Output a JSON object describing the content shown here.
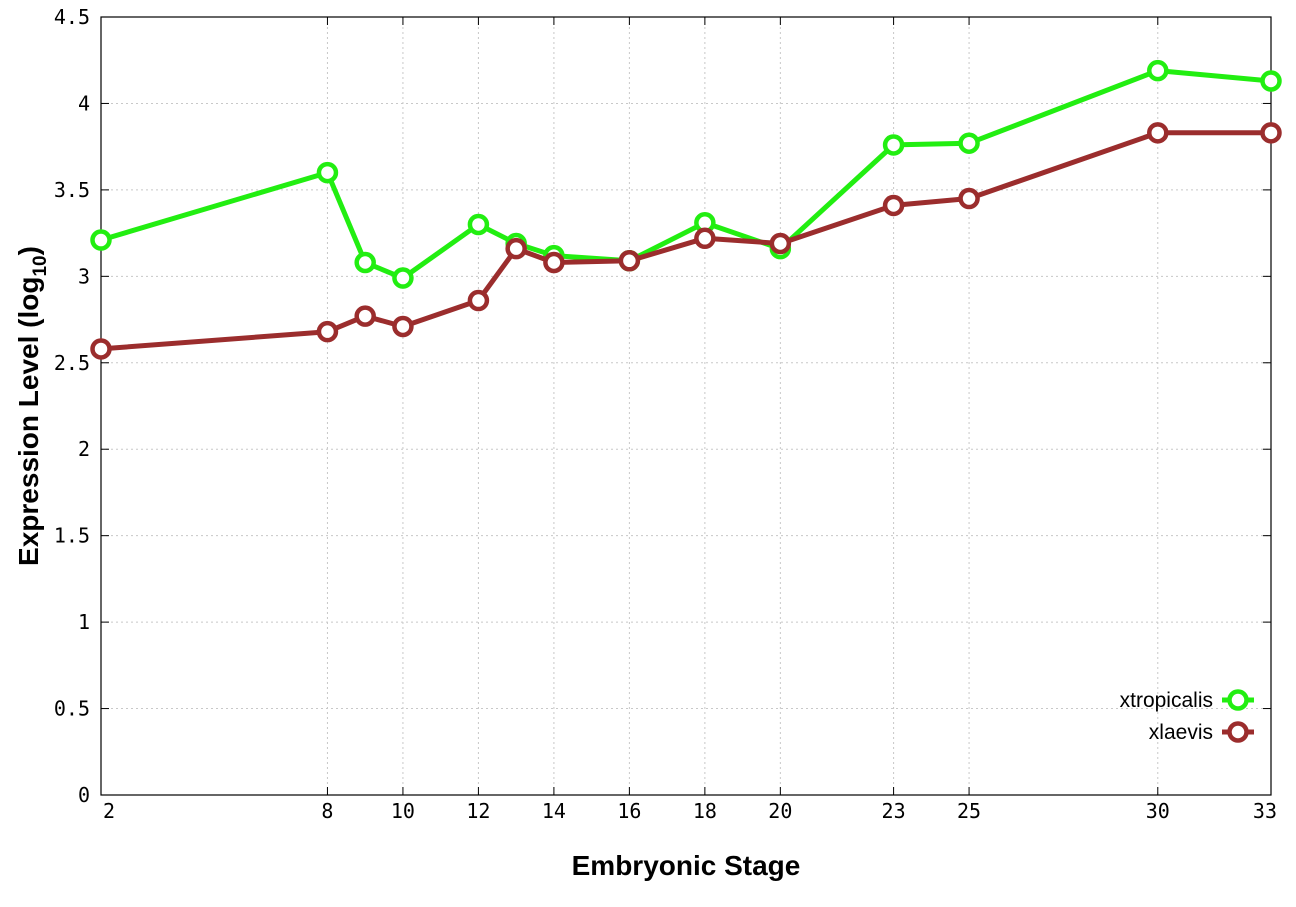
{
  "chart_data": {
    "type": "line",
    "xlabel": "Embryonic Stage",
    "ylabel_main": "Expression Level (log",
    "ylabel_sub": "10",
    "ylabel_close": ")",
    "x": [
      2,
      8,
      9,
      10,
      12,
      13,
      14,
      16,
      18,
      20,
      23,
      25,
      30,
      33
    ],
    "x_ticks": [
      2,
      8,
      10,
      12,
      14,
      16,
      18,
      20,
      23,
      25,
      30,
      33
    ],
    "x_tick_labels": [
      "2",
      "8",
      "10",
      "12",
      "14",
      "16",
      "18",
      "20",
      "23",
      "25",
      "30",
      "33"
    ],
    "xlim": [
      2,
      33
    ],
    "ylim": [
      0,
      4.5
    ],
    "y_ticks": [
      0,
      0.5,
      1,
      1.5,
      2,
      2.5,
      3,
      3.5,
      4,
      4.5
    ],
    "y_tick_labels": [
      "0",
      "0.5",
      "1",
      "1.5",
      "2",
      "2.5",
      "3",
      "3.5",
      "4",
      "4.5"
    ],
    "grid": true,
    "legend_position": "bottom-right",
    "series": [
      {
        "name": "xtropicalis",
        "color": "#22ee11",
        "values": [
          3.21,
          3.6,
          3.08,
          2.99,
          3.3,
          3.19,
          3.12,
          3.09,
          3.31,
          3.16,
          3.76,
          3.77,
          4.19,
          4.13
        ]
      },
      {
        "name": "xlaevis",
        "color": "#9b2d2d",
        "values": [
          2.58,
          2.68,
          2.77,
          2.71,
          2.86,
          3.16,
          3.08,
          3.09,
          3.22,
          3.19,
          3.41,
          3.45,
          3.83,
          3.83
        ]
      }
    ]
  }
}
